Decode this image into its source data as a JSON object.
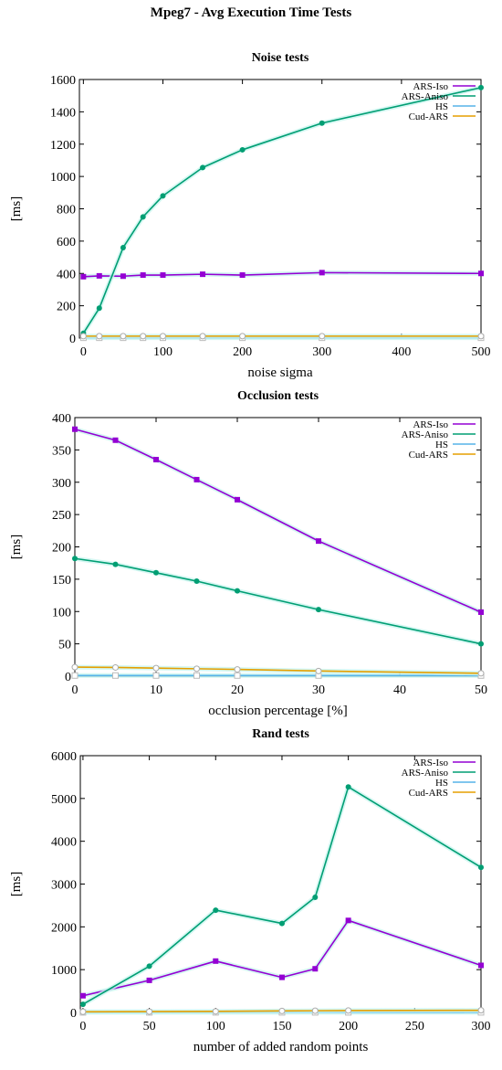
{
  "figure": {
    "title": "Mpeg7 - Avg Execution Time Tests"
  },
  "colors": {
    "ARS-Iso": "#9400d3",
    "ARS-Aniso": "#009e73",
    "HS": "#56b4e9",
    "Cud-ARS": "#e69f00"
  },
  "chart_data": [
    {
      "type": "line",
      "title": "Noise tests",
      "xlabel": "noise sigma",
      "ylabel": "[ms]",
      "xlim": [
        -5,
        500
      ],
      "ylim": [
        0,
        1600
      ],
      "xticks": [
        0,
        100,
        200,
        300,
        400,
        500
      ],
      "yticks": [
        0,
        200,
        400,
        600,
        800,
        1000,
        1200,
        1400,
        1600
      ],
      "x": [
        0,
        20,
        50,
        75,
        100,
        150,
        200,
        300,
        500
      ],
      "legend": "top-right",
      "grid": false,
      "series": [
        {
          "name": "ARS-Iso",
          "values": [
            380,
            385,
            383,
            390,
            390,
            395,
            390,
            405,
            400
          ]
        },
        {
          "name": "ARS-Aniso",
          "values": [
            30,
            185,
            560,
            750,
            880,
            1055,
            1165,
            1330,
            1550
          ]
        },
        {
          "name": "HS",
          "values": [
            2,
            2,
            2,
            2,
            2,
            2,
            2,
            2,
            2
          ]
        },
        {
          "name": "Cud-ARS",
          "values": [
            12,
            12,
            12,
            12,
            12,
            12,
            12,
            12,
            12
          ]
        }
      ]
    },
    {
      "type": "line",
      "title": "Occlusion tests",
      "xlabel": "occlusion percentage [%]",
      "ylabel": "[ms]",
      "xlim": [
        0,
        50
      ],
      "ylim": [
        0,
        400
      ],
      "xticks": [
        0,
        10,
        20,
        30,
        40,
        50
      ],
      "yticks": [
        0,
        50,
        100,
        150,
        200,
        250,
        300,
        350,
        400
      ],
      "x": [
        0,
        5,
        10,
        15,
        20,
        30,
        50
      ],
      "legend": "top-right",
      "grid": false,
      "series": [
        {
          "name": "ARS-Iso",
          "values": [
            382,
            365,
            335,
            304,
            273,
            209,
            99
          ]
        },
        {
          "name": "ARS-Aniso",
          "values": [
            182,
            173,
            160,
            147,
            132,
            103,
            50
          ]
        },
        {
          "name": "HS",
          "values": [
            1,
            1,
            1,
            1,
            1,
            1,
            1
          ]
        },
        {
          "name": "Cud-ARS",
          "values": [
            14,
            13.5,
            12.5,
            11.5,
            10.5,
            8,
            4.5
          ]
        }
      ]
    },
    {
      "type": "line",
      "title": "Rand tests",
      "xlabel": "number of added random points",
      "ylabel": "[ms]",
      "xlim": [
        -2,
        300
      ],
      "ylim": [
        0,
        6000
      ],
      "xticks": [
        0,
        50,
        100,
        150,
        200,
        250,
        300
      ],
      "yticks": [
        0,
        1000,
        2000,
        3000,
        4000,
        5000,
        6000
      ],
      "x": [
        0,
        50,
        100,
        150,
        175,
        200,
        300
      ],
      "legend": "top-right",
      "grid": false,
      "series": [
        {
          "name": "ARS-Iso",
          "values": [
            390,
            750,
            1200,
            820,
            1020,
            2150,
            1100
          ]
        },
        {
          "name": "ARS-Aniso",
          "values": [
            190,
            1080,
            2390,
            2080,
            2690,
            5270,
            3390
          ]
        },
        {
          "name": "HS",
          "values": [
            2,
            2,
            2,
            2,
            2,
            2,
            2
          ]
        },
        {
          "name": "Cud-ARS",
          "values": [
            15,
            20,
            25,
            35,
            40,
            45,
            50
          ]
        }
      ]
    }
  ]
}
